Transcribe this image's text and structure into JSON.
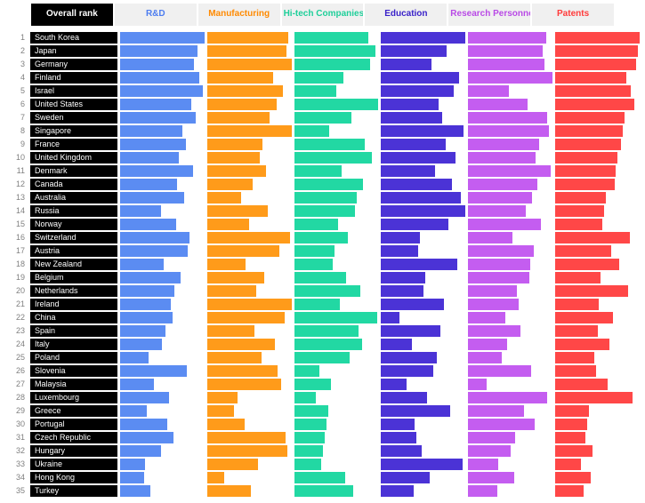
{
  "tabs": [
    {
      "label": "Overall rank",
      "color": "#000000",
      "active": true
    },
    {
      "label": "R&D",
      "color": "#4d7df0",
      "active": false
    },
    {
      "label": "Manufacturing",
      "color": "#ff8a00",
      "active": false
    },
    {
      "label": "Hi-tech Companies",
      "color": "#1fcf9a",
      "active": false
    },
    {
      "label": "Education",
      "color": "#3a22c9",
      "active": false
    },
    {
      "label": "Research Personnel",
      "color": "#b94ae6",
      "active": false
    },
    {
      "label": "Patents",
      "color": "#ff3b3b",
      "active": false
    }
  ],
  "metrics": [
    {
      "key": "rd",
      "color": "#5b8cf2"
    },
    {
      "key": "mfg",
      "color": "#ff9b1a"
    },
    {
      "key": "hitech",
      "color": "#22d8a3"
    },
    {
      "key": "edu",
      "color": "#4b33d6"
    },
    {
      "key": "research",
      "color": "#c45df0"
    },
    {
      "key": "patents",
      "color": "#ff4747"
    }
  ],
  "max_bar_width_pct": 100,
  "rows": [
    {
      "rank": 1,
      "country": "South Korea",
      "rd": 100,
      "mfg": 96,
      "hitech": 88,
      "edu": 100,
      "research": 92,
      "patents": 100
    },
    {
      "rank": 2,
      "country": "Japan",
      "rd": 92,
      "mfg": 94,
      "hitech": 96,
      "edu": 78,
      "research": 88,
      "patents": 98
    },
    {
      "rank": 3,
      "country": "Germany",
      "rd": 88,
      "mfg": 100,
      "hitech": 90,
      "edu": 60,
      "research": 90,
      "patents": 96
    },
    {
      "rank": 4,
      "country": "Finland",
      "rd": 94,
      "mfg": 78,
      "hitech": 58,
      "edu": 92,
      "research": 100,
      "patents": 84
    },
    {
      "rank": 5,
      "country": "Israel",
      "rd": 98,
      "mfg": 90,
      "hitech": 50,
      "edu": 86,
      "research": 48,
      "patents": 90
    },
    {
      "rank": 6,
      "country": "United States",
      "rd": 84,
      "mfg": 82,
      "hitech": 100,
      "edu": 68,
      "research": 70,
      "patents": 94
    },
    {
      "rank": 7,
      "country": "Sweden",
      "rd": 90,
      "mfg": 74,
      "hitech": 68,
      "edu": 72,
      "research": 94,
      "patents": 82
    },
    {
      "rank": 8,
      "country": "Singapore",
      "rd": 74,
      "mfg": 100,
      "hitech": 42,
      "edu": 98,
      "research": 96,
      "patents": 80
    },
    {
      "rank": 9,
      "country": "France",
      "rd": 78,
      "mfg": 66,
      "hitech": 84,
      "edu": 76,
      "research": 84,
      "patents": 78
    },
    {
      "rank": 10,
      "country": "United Kingdom",
      "rd": 70,
      "mfg": 62,
      "hitech": 92,
      "edu": 88,
      "research": 80,
      "patents": 74
    },
    {
      "rank": 11,
      "country": "Denmark",
      "rd": 86,
      "mfg": 70,
      "hitech": 56,
      "edu": 64,
      "research": 98,
      "patents": 72
    },
    {
      "rank": 12,
      "country": "Canada",
      "rd": 68,
      "mfg": 54,
      "hitech": 82,
      "edu": 84,
      "research": 82,
      "patents": 70
    },
    {
      "rank": 13,
      "country": "Australia",
      "rd": 76,
      "mfg": 40,
      "hitech": 74,
      "edu": 94,
      "research": 76,
      "patents": 60
    },
    {
      "rank": 14,
      "country": "Russia",
      "rd": 48,
      "mfg": 72,
      "hitech": 72,
      "edu": 100,
      "research": 68,
      "patents": 58
    },
    {
      "rank": 15,
      "country": "Norway",
      "rd": 66,
      "mfg": 50,
      "hitech": 52,
      "edu": 80,
      "research": 86,
      "patents": 56
    },
    {
      "rank": 16,
      "country": "Switzerland",
      "rd": 82,
      "mfg": 98,
      "hitech": 64,
      "edu": 46,
      "research": 52,
      "patents": 88
    },
    {
      "rank": 17,
      "country": "Austria",
      "rd": 80,
      "mfg": 86,
      "hitech": 48,
      "edu": 44,
      "research": 78,
      "patents": 66
    },
    {
      "rank": 18,
      "country": "New Zealand",
      "rd": 52,
      "mfg": 46,
      "hitech": 46,
      "edu": 90,
      "research": 74,
      "patents": 76
    },
    {
      "rank": 19,
      "country": "Belgium",
      "rd": 72,
      "mfg": 68,
      "hitech": 62,
      "edu": 52,
      "research": 72,
      "patents": 54
    },
    {
      "rank": 20,
      "country": "Netherlands",
      "rd": 64,
      "mfg": 58,
      "hitech": 78,
      "edu": 50,
      "research": 58,
      "patents": 86
    },
    {
      "rank": 21,
      "country": "Ireland",
      "rd": 60,
      "mfg": 100,
      "hitech": 54,
      "edu": 74,
      "research": 60,
      "patents": 52
    },
    {
      "rank": 22,
      "country": "China",
      "rd": 62,
      "mfg": 92,
      "hitech": 98,
      "edu": 22,
      "research": 44,
      "patents": 68
    },
    {
      "rank": 23,
      "country": "Spain",
      "rd": 54,
      "mfg": 56,
      "hitech": 76,
      "edu": 70,
      "research": 62,
      "patents": 50
    },
    {
      "rank": 24,
      "country": "Italy",
      "rd": 50,
      "mfg": 80,
      "hitech": 80,
      "edu": 36,
      "research": 46,
      "patents": 64
    },
    {
      "rank": 25,
      "country": "Poland",
      "rd": 34,
      "mfg": 64,
      "hitech": 66,
      "edu": 66,
      "research": 40,
      "patents": 46
    },
    {
      "rank": 26,
      "country": "Slovenia",
      "rd": 79,
      "mfg": 84,
      "hitech": 30,
      "edu": 62,
      "research": 75,
      "patents": 48
    },
    {
      "rank": 27,
      "country": "Malaysia",
      "rd": 40,
      "mfg": 88,
      "hitech": 44,
      "edu": 30,
      "research": 22,
      "patents": 62
    },
    {
      "rank": 28,
      "country": "Luxembourg",
      "rd": 58,
      "mfg": 36,
      "hitech": 26,
      "edu": 54,
      "research": 93,
      "patents": 92
    },
    {
      "rank": 29,
      "country": "Greece",
      "rd": 32,
      "mfg": 32,
      "hitech": 40,
      "edu": 82,
      "research": 66,
      "patents": 40
    },
    {
      "rank": 30,
      "country": "Portugal",
      "rd": 56,
      "mfg": 44,
      "hitech": 38,
      "edu": 40,
      "research": 79,
      "patents": 38
    },
    {
      "rank": 31,
      "country": "Czech Republic",
      "rd": 63,
      "mfg": 93,
      "hitech": 36,
      "edu": 42,
      "research": 56,
      "patents": 36
    },
    {
      "rank": 32,
      "country": "Hungary",
      "rd": 49,
      "mfg": 95,
      "hitech": 34,
      "edu": 48,
      "research": 50,
      "patents": 44
    },
    {
      "rank": 33,
      "country": "Ukraine",
      "rd": 30,
      "mfg": 60,
      "hitech": 32,
      "edu": 96,
      "research": 36,
      "patents": 30
    },
    {
      "rank": 34,
      "country": "Hong Kong",
      "rd": 28,
      "mfg": 20,
      "hitech": 60,
      "edu": 58,
      "research": 54,
      "patents": 42
    },
    {
      "rank": 35,
      "country": "Turkey",
      "rd": 36,
      "mfg": 52,
      "hitech": 70,
      "edu": 38,
      "research": 34,
      "patents": 34
    }
  ]
}
